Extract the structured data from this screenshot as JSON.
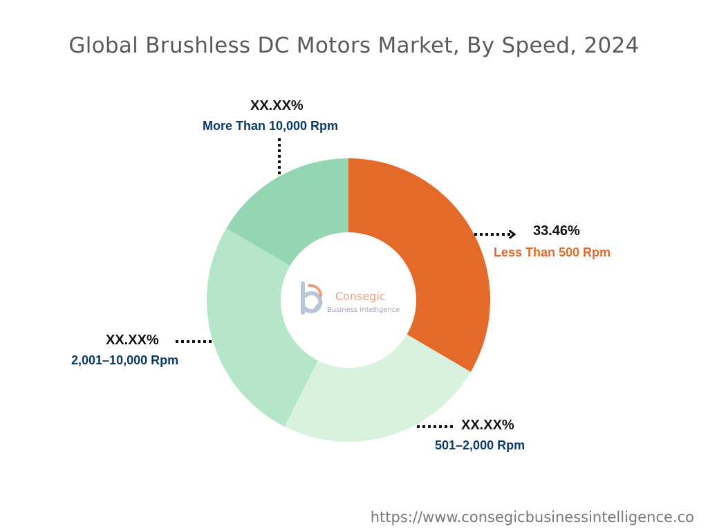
{
  "chart_data": {
    "type": "pie",
    "title": "Global Brushless DC Motors Market, By Speed, 2024",
    "categories": [
      "Less Than 500 Rpm",
      "501–2,000 Rpm",
      "2,001–10,000 Rpm",
      "More Than 10,000 Rpm"
    ],
    "values": [
      33.46,
      24,
      26,
      16.54
    ],
    "data_labels": [
      "33.46%",
      "XX.XX%",
      "XX.XX%",
      "XX.XX%"
    ],
    "colors": [
      "#e36a28",
      "#d8f2dd",
      "#b6e6c8",
      "#95d6b2"
    ],
    "label_colors": [
      "#e36a28",
      "#0b3a66",
      "#0b3a66",
      "#0b3a66"
    ],
    "donut": true,
    "legend": "none"
  },
  "logo": {
    "name": "Consegic",
    "sub": "Business Intelligence"
  },
  "footer": {
    "url": "https://www.consegicbusinessintelligence.co"
  }
}
